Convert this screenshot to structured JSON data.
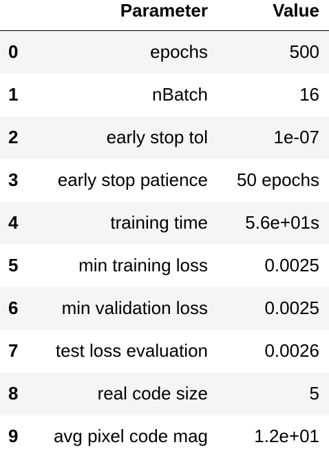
{
  "table": {
    "columns": [
      "",
      "Parameter",
      "Value"
    ],
    "rows": [
      {
        "index": "0",
        "parameter": "epochs",
        "value": "500"
      },
      {
        "index": "1",
        "parameter": "nBatch",
        "value": "16"
      },
      {
        "index": "2",
        "parameter": "early stop tol",
        "value": "1e-07"
      },
      {
        "index": "3",
        "parameter": "early stop patience",
        "value": "50 epochs"
      },
      {
        "index": "4",
        "parameter": "training time",
        "value": "5.6e+01s"
      },
      {
        "index": "5",
        "parameter": "min training loss",
        "value": "0.0025"
      },
      {
        "index": "6",
        "parameter": "min validation loss",
        "value": "0.0025"
      },
      {
        "index": "7",
        "parameter": "test loss evaluation",
        "value": "0.0026"
      },
      {
        "index": "8",
        "parameter": "real code size",
        "value": "5"
      },
      {
        "index": "9",
        "parameter": "avg pixel code mag",
        "value": "1.2e+01"
      }
    ]
  },
  "colors": {
    "stripe": "#f5f5f5",
    "text": "#000000",
    "header_rule": "#000000"
  }
}
